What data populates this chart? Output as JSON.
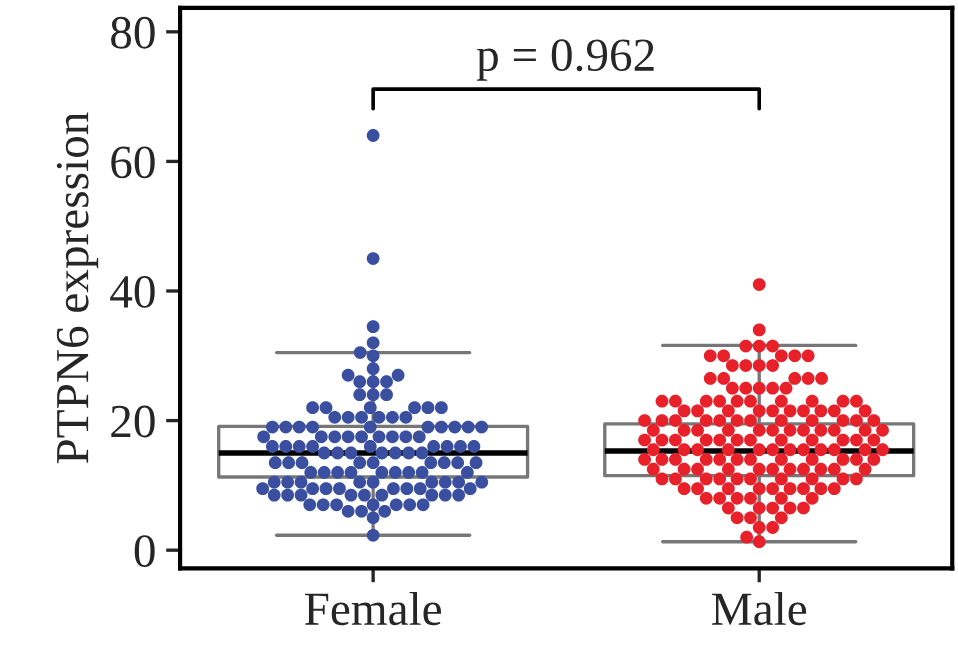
{
  "chart_data": {
    "type": "box",
    "ylabel": "PTPN6 expression",
    "categories": [
      "Female",
      "Male"
    ],
    "boxes": [
      {
        "low": 2.3,
        "q1": 11.3,
        "median": 15,
        "q3": 19.1,
        "high": 30.5
      },
      {
        "low": 1.3,
        "q1": 11.5,
        "median": 15.3,
        "q3": 19.5,
        "high": 31.6
      }
    ],
    "series": [
      {
        "type": "scatter",
        "color": "#3a4fa0",
        "x": [
          "Female",
          "Female",
          "Female",
          "Female",
          "Female",
          "Female",
          "Female",
          "Female",
          "Female",
          "Female",
          "Female",
          "Female",
          "Female",
          "Female",
          "Female",
          "Female",
          "Female",
          "Female",
          "Female",
          "Female",
          "Female",
          "Female",
          "Female",
          "Female",
          "Female",
          "Female",
          "Female",
          "Female",
          "Female",
          "Female",
          "Female",
          "Female",
          "Female",
          "Female",
          "Female",
          "Female",
          "Female",
          "Female",
          "Female",
          "Female",
          "Female",
          "Female",
          "Female",
          "Female",
          "Female",
          "Female",
          "Female",
          "Female",
          "Female",
          "Female",
          "Female",
          "Female",
          "Female",
          "Female",
          "Female",
          "Female",
          "Female",
          "Female",
          "Female",
          "Female",
          "Female",
          "Female",
          "Female",
          "Female",
          "Female",
          "Female",
          "Female",
          "Female",
          "Female",
          "Female",
          "Female",
          "Female",
          "Female",
          "Female",
          "Female",
          "Female",
          "Female",
          "Female",
          "Female",
          "Female",
          "Female",
          "Female",
          "Female",
          "Female",
          "Female",
          "Female",
          "Female",
          "Female",
          "Female",
          "Female",
          "Female",
          "Female",
          "Female",
          "Female",
          "Female",
          "Female",
          "Female",
          "Female",
          "Female",
          "Female",
          "Female",
          "Female",
          "Female",
          "Female",
          "Female",
          "Female",
          "Female",
          "Female",
          "Female",
          "Female",
          "Female",
          "Female",
          "Female",
          "Female",
          "Female",
          "Female",
          "Female",
          "Female"
        ],
        "values": [
          64,
          45,
          34.5,
          32,
          30.5,
          30,
          28,
          27,
          27,
          26,
          26,
          26,
          24,
          24,
          24,
          22,
          22,
          22,
          22,
          22,
          22,
          20.5,
          20.5,
          20.5,
          20.5,
          20.5,
          20.5,
          19,
          19,
          19,
          19,
          19,
          19,
          19,
          19,
          19,
          19,
          17.5,
          17.5,
          17.5,
          17.5,
          17.5,
          17.5,
          17.5,
          17.5,
          17.5,
          16,
          16,
          16,
          16,
          16,
          16,
          16,
          16,
          16,
          15,
          15,
          15,
          15,
          15,
          15,
          15,
          13.5,
          13.5,
          13.5,
          13.5,
          13.5,
          13.5,
          13.5,
          13.5,
          13.5,
          12,
          12,
          12,
          12,
          12,
          12,
          12,
          12,
          12,
          10.5,
          10.5,
          10.5,
          10.5,
          10.5,
          10.5,
          10.5,
          10.5,
          10.5,
          9.5,
          9.5,
          9.5,
          9.5,
          9.5,
          9.5,
          9.5,
          9.5,
          8.5,
          8.5,
          8.5,
          8.5,
          8.5,
          8.5,
          8.5,
          8.5,
          8.5,
          7,
          7,
          7,
          7,
          7,
          7,
          7,
          6,
          6,
          6,
          5,
          2.3
        ]
      },
      {
        "type": "scatter",
        "color": "#e8202a",
        "x": [
          "Male",
          "Male",
          "Male",
          "Male",
          "Male",
          "Male",
          "Male",
          "Male",
          "Male",
          "Male",
          "Male",
          "Male",
          "Male",
          "Male",
          "Male",
          "Male",
          "Male",
          "Male",
          "Male",
          "Male",
          "Male",
          "Male",
          "Male",
          "Male",
          "Male",
          "Male",
          "Male",
          "Male",
          "Male",
          "Male",
          "Male",
          "Male",
          "Male",
          "Male",
          "Male",
          "Male",
          "Male",
          "Male",
          "Male",
          "Male",
          "Male",
          "Male",
          "Male",
          "Male",
          "Male",
          "Male",
          "Male",
          "Male",
          "Male",
          "Male",
          "Male",
          "Male",
          "Male",
          "Male",
          "Male",
          "Male",
          "Male",
          "Male",
          "Male",
          "Male",
          "Male",
          "Male",
          "Male",
          "Male",
          "Male",
          "Male",
          "Male",
          "Male",
          "Male",
          "Male",
          "Male",
          "Male",
          "Male",
          "Male",
          "Male",
          "Male",
          "Male",
          "Male",
          "Male",
          "Male",
          "Male",
          "Male",
          "Male",
          "Male",
          "Male",
          "Male",
          "Male",
          "Male",
          "Male",
          "Male",
          "Male",
          "Male",
          "Male",
          "Male",
          "Male",
          "Male",
          "Male",
          "Male",
          "Male",
          "Male",
          "Male",
          "Male",
          "Male",
          "Male",
          "Male",
          "Male",
          "Male",
          "Male",
          "Male",
          "Male",
          "Male",
          "Male",
          "Male",
          "Male",
          "Male",
          "Male",
          "Male",
          "Male",
          "Male",
          "Male",
          "Male",
          "Male",
          "Male",
          "Male",
          "Male",
          "Male",
          "Male",
          "Male",
          "Male",
          "Male",
          "Male",
          "Male",
          "Male",
          "Male",
          "Male",
          "Male",
          "Male",
          "Male",
          "Male",
          "Male",
          "Male",
          "Male",
          "Male",
          "Male",
          "Male",
          "Male",
          "Male",
          "Male",
          "Male",
          "Male",
          "Male",
          "Male"
        ],
        "values": [
          41,
          34,
          31.5,
          31.5,
          31.5,
          30,
          30,
          30,
          30,
          30,
          28.5,
          28.5,
          28.5,
          28.5,
          26.5,
          26.5,
          26.5,
          26.5,
          26.5,
          25,
          25,
          25,
          25,
          25,
          23,
          23,
          23,
          23,
          23,
          23,
          23,
          23,
          23,
          23,
          21.5,
          21.5,
          21.5,
          21.5,
          21.5,
          21.5,
          21.5,
          21.5,
          21.5,
          21.5,
          20,
          20,
          20,
          20,
          20,
          20,
          20,
          20,
          20,
          20,
          20,
          20,
          18.5,
          18.5,
          18.5,
          18.5,
          18.5,
          18.5,
          18.5,
          18.5,
          18.5,
          18.5,
          18.5,
          18.5,
          17,
          17,
          17,
          17,
          17,
          17,
          17,
          17,
          17,
          17,
          17,
          17,
          15.5,
          15.5,
          15.5,
          15.5,
          15.5,
          15.5,
          15.5,
          15.5,
          15.5,
          15.5,
          15.5,
          15.5,
          14,
          14,
          14,
          14,
          14,
          14,
          14,
          14,
          14,
          14,
          14,
          14,
          12.5,
          12.5,
          12.5,
          12.5,
          12.5,
          12.5,
          12.5,
          12.5,
          12.5,
          12.5,
          12.5,
          11,
          11,
          11,
          11,
          11,
          11,
          11,
          11,
          11,
          11,
          9.5,
          9.5,
          9.5,
          9.5,
          9.5,
          9.5,
          9.5,
          9.5,
          9.5,
          8,
          8,
          8,
          8,
          8,
          8,
          6.5,
          6.5,
          6.5,
          6.5,
          6.5,
          5,
          5,
          5,
          3.5,
          3.5,
          2,
          1.3
        ]
      }
    ],
    "ylim": [
      -2.8,
      83.7
    ],
    "yticks": [
      0,
      20,
      40,
      60,
      80
    ],
    "annotations": [
      "p = 0.962"
    ],
    "grid": false,
    "legend": false
  }
}
